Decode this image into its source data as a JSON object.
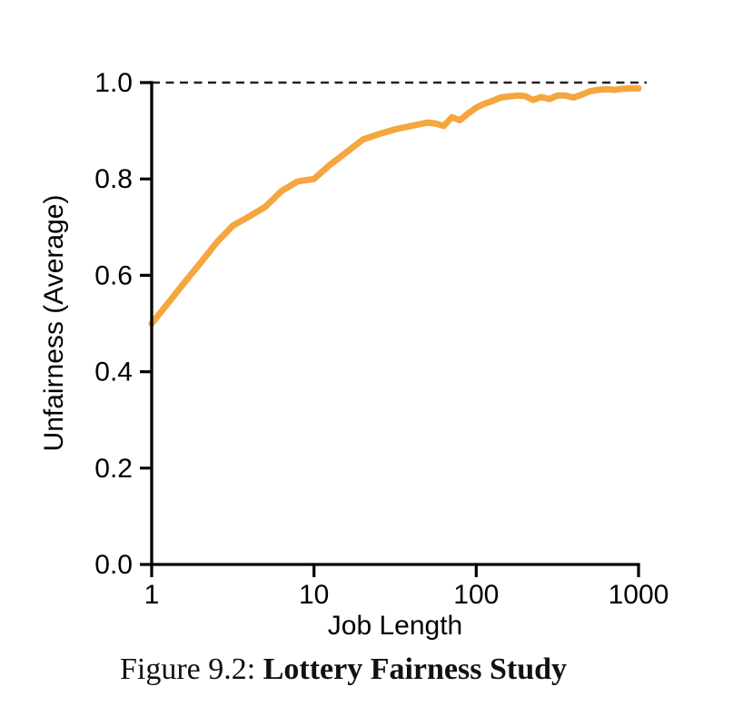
{
  "figure_caption": {
    "prefix": "Figure 9.2: ",
    "title": "Lottery Fairness Study"
  },
  "chart_data": {
    "type": "line",
    "title": "",
    "xlabel": "Job Length",
    "ylabel": "Unfairness (Average)",
    "xscale": "log",
    "xlim": [
      1,
      1000
    ],
    "ylim": [
      0.0,
      1.0
    ],
    "grid": false,
    "legend": false,
    "xticks": [
      1,
      10,
      100,
      1000
    ],
    "xtick_labels": [
      "1",
      "10",
      "100",
      "1000"
    ],
    "yticks": [
      0.0,
      0.2,
      0.4,
      0.6,
      0.8,
      1.0
    ],
    "ytick_labels": [
      "0.0",
      "0.2",
      "0.4",
      "0.6",
      "0.8",
      "1.0"
    ],
    "reference_line": {
      "y": 1.0,
      "style": "dashed",
      "color": "#222222"
    },
    "series": [
      {
        "name": "average-unfairness",
        "color": "#F4A63F",
        "x": [
          1,
          1.26,
          1.58,
          2,
          2.51,
          3.16,
          3.98,
          5.01,
          6.31,
          7.94,
          10,
          12.6,
          15.8,
          20,
          25.1,
          31.6,
          39.8,
          50.1,
          56.2,
          63.1,
          70.8,
          79.4,
          89.1,
          100,
          112,
          126,
          141,
          158,
          178,
          200,
          224,
          251,
          282,
          316,
          355,
          398,
          447,
          501,
          562,
          631,
          708,
          794,
          891,
          1000
        ],
        "y": [
          0.5,
          0.542,
          0.584,
          0.626,
          0.668,
          0.703,
          0.722,
          0.742,
          0.775,
          0.795,
          0.8,
          0.83,
          0.855,
          0.882,
          0.893,
          0.903,
          0.91,
          0.917,
          0.915,
          0.91,
          0.928,
          0.922,
          0.936,
          0.948,
          0.956,
          0.962,
          0.969,
          0.971,
          0.973,
          0.972,
          0.964,
          0.97,
          0.966,
          0.973,
          0.973,
          0.969,
          0.975,
          0.982,
          0.985,
          0.986,
          0.985,
          0.987,
          0.988,
          0.988
        ]
      }
    ]
  }
}
